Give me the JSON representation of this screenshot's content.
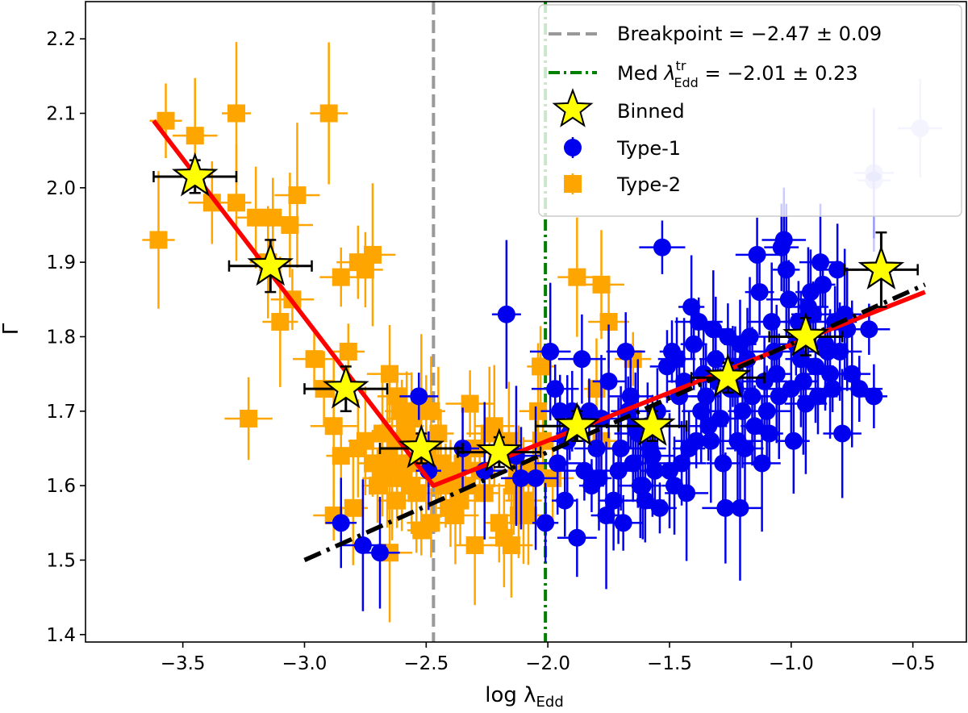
{
  "chart_data": {
    "type": "scatter",
    "title": "",
    "xlabel": "log λ",
    "xlabel_sub": "Edd",
    "ylabel": "Γ",
    "xlim": [
      -3.9,
      -0.28
    ],
    "ylim": [
      1.39,
      2.25
    ],
    "xticks": [
      -3.5,
      -3.0,
      -2.5,
      -2.0,
      -1.5,
      -1.0,
      -0.5
    ],
    "xtick_labels": [
      "−3.5",
      "−3.0",
      "−2.5",
      "−2.0",
      "−1.5",
      "−1.0",
      "−0.5"
    ],
    "yticks": [
      1.4,
      1.5,
      1.6,
      1.7,
      1.8,
      1.9,
      2.0,
      2.1,
      2.2
    ],
    "ytick_labels": [
      "1.4",
      "1.5",
      "1.6",
      "1.7",
      "1.8",
      "1.9",
      "2.0",
      "2.1",
      "2.2"
    ],
    "colors": {
      "type1": "#0000ee",
      "type2": "#ffa500",
      "fit_red": "#ff0000",
      "fit_black": "#000000",
      "breakpoint": "#999999",
      "median": "#008000",
      "binned": "#ffff00"
    },
    "vlines": [
      {
        "name": "breakpoint",
        "x": -2.47
      },
      {
        "name": "median",
        "x": -2.01
      }
    ],
    "fits": {
      "red_broken": {
        "x": [
          -3.62,
          -2.47,
          -0.45
        ],
        "y": [
          2.09,
          1.6,
          1.86
        ]
      },
      "black_dashdot": {
        "x": [
          -3.0,
          -0.45
        ],
        "y": [
          1.5,
          1.87
        ]
      }
    },
    "legend": {
      "position": "upper right",
      "entries": [
        {
          "name": "breakpoint",
          "text": "Breakpoint = −2.47 ± 0.09"
        },
        {
          "name": "median",
          "text_pre": "Med ",
          "text_lambda": "λ",
          "text_sup": "tr",
          "text_sub": "Edd",
          "text_post": " = −2.01 ± 0.23"
        },
        {
          "name": "binned",
          "text": "Binned"
        },
        {
          "name": "type1",
          "text": "Type-1"
        },
        {
          "name": "type2",
          "text": "Type-2"
        }
      ]
    },
    "series": [
      {
        "name": "Binned",
        "marker": "star",
        "points": [
          {
            "x": -3.45,
            "y": 2.015,
            "xerr": 0.17,
            "yerr": 0.022
          },
          {
            "x": -3.14,
            "y": 1.895,
            "xerr": 0.17,
            "yerr": 0.035
          },
          {
            "x": -2.83,
            "y": 1.73,
            "xerr": 0.17,
            "yerr": 0.03
          },
          {
            "x": -2.52,
            "y": 1.65,
            "xerr": 0.17,
            "yerr": 0.02
          },
          {
            "x": -2.2,
            "y": 1.645,
            "xerr": 0.17,
            "yerr": 0.02
          },
          {
            "x": -1.88,
            "y": 1.68,
            "xerr": 0.17,
            "yerr": 0.02
          },
          {
            "x": -1.57,
            "y": 1.68,
            "xerr": 0.14,
            "yerr": 0.02
          },
          {
            "x": -1.26,
            "y": 1.745,
            "xerr": 0.15,
            "yerr": 0.02
          },
          {
            "x": -0.94,
            "y": 1.8,
            "xerr": 0.15,
            "yerr": 0.025
          },
          {
            "x": -0.63,
            "y": 1.89,
            "xerr": 0.15,
            "yerr": 0.05
          }
        ]
      },
      {
        "name": "Type-1",
        "marker": "circle",
        "points": [
          [
            -2.53,
            1.72
          ],
          [
            -2.49,
            1.62
          ],
          [
            -2.35,
            1.65
          ],
          [
            -2.26,
            1.62
          ],
          [
            -2.17,
            1.83
          ],
          [
            -2.13,
            1.64
          ],
          [
            -2.11,
            1.61
          ],
          [
            -2.05,
            1.61
          ],
          [
            -2.01,
            1.55
          ],
          [
            -1.99,
            1.78
          ],
          [
            -1.97,
            1.73
          ],
          [
            -1.95,
            1.7
          ],
          [
            -1.92,
            1.66
          ],
          [
            -1.9,
            1.7
          ],
          [
            -1.88,
            1.53
          ],
          [
            -1.86,
            1.77
          ],
          [
            -1.85,
            1.62
          ],
          [
            -1.82,
            1.6
          ],
          [
            -1.8,
            1.65
          ],
          [
            -1.78,
            1.69
          ],
          [
            -1.75,
            1.74
          ],
          [
            -1.73,
            1.58
          ],
          [
            -1.7,
            1.65
          ],
          [
            -1.68,
            1.78
          ],
          [
            -1.66,
            1.72
          ],
          [
            -1.64,
            1.68
          ],
          [
            -1.62,
            1.6
          ],
          [
            -1.6,
            1.58
          ],
          [
            -1.58,
            1.65
          ],
          [
            -1.56,
            1.62
          ],
          [
            -1.55,
            1.7
          ],
          [
            -1.54,
            1.57
          ],
          [
            -1.53,
            1.92
          ],
          [
            -1.51,
            1.76
          ],
          [
            -1.5,
            1.62
          ],
          [
            -1.49,
            1.78
          ],
          [
            -1.48,
            1.6
          ],
          [
            -1.47,
            1.77
          ],
          [
            -1.46,
            1.72
          ],
          [
            -1.44,
            1.74
          ],
          [
            -1.42,
            1.65
          ],
          [
            -1.41,
            1.84
          ],
          [
            -1.4,
            1.79
          ],
          [
            -1.38,
            1.82
          ],
          [
            -1.36,
            1.75
          ],
          [
            -1.35,
            1.72
          ],
          [
            -1.34,
            1.68
          ],
          [
            -1.32,
            1.81
          ],
          [
            -1.31,
            1.77
          ],
          [
            -1.3,
            1.74
          ],
          [
            -1.28,
            1.63
          ],
          [
            -1.27,
            1.57
          ],
          [
            -1.26,
            1.8
          ],
          [
            -1.24,
            1.76
          ],
          [
            -1.23,
            1.73
          ],
          [
            -1.22,
            1.66
          ],
          [
            -1.21,
            1.79
          ],
          [
            -1.2,
            1.7
          ],
          [
            -1.19,
            1.65
          ],
          [
            -1.18,
            1.77
          ],
          [
            -1.17,
            1.8
          ],
          [
            -1.16,
            1.72
          ],
          [
            -1.15,
            1.68
          ],
          [
            -1.14,
            1.91
          ],
          [
            -1.13,
            1.86
          ],
          [
            -1.12,
            1.63
          ],
          [
            -1.11,
            1.74
          ],
          [
            -1.1,
            1.7
          ],
          [
            -1.09,
            1.67
          ],
          [
            -1.08,
            1.82
          ],
          [
            -1.07,
            1.78
          ],
          [
            -1.06,
            1.75
          ],
          [
            -1.05,
            1.72
          ],
          [
            -1.04,
            1.92
          ],
          [
            -1.03,
            1.93
          ],
          [
            -1.02,
            1.89
          ],
          [
            -1.01,
            1.85
          ],
          [
            -1.0,
            1.73
          ],
          [
            -0.99,
            1.66
          ],
          [
            -0.98,
            1.79
          ],
          [
            -0.97,
            1.82
          ],
          [
            -0.96,
            1.77
          ],
          [
            -0.95,
            1.74
          ],
          [
            -0.94,
            1.71
          ],
          [
            -0.93,
            1.84
          ],
          [
            -0.92,
            1.86
          ],
          [
            -0.91,
            1.83
          ],
          [
            -0.9,
            1.76
          ],
          [
            -0.89,
            1.72
          ],
          [
            -0.88,
            1.9
          ],
          [
            -0.87,
            1.87
          ],
          [
            -0.86,
            1.79
          ],
          [
            -0.85,
            1.78
          ],
          [
            -0.84,
            1.75
          ],
          [
            -0.83,
            1.73
          ],
          [
            -0.82,
            1.82
          ],
          [
            -0.81,
            1.89
          ],
          [
            -0.8,
            1.78
          ],
          [
            -0.79,
            1.67
          ],
          [
            -0.78,
            1.83
          ],
          [
            -0.77,
            1.81
          ],
          [
            -0.75,
            1.75
          ],
          [
            -0.72,
            1.73
          ],
          [
            -0.68,
            1.81
          ],
          [
            -0.66,
            1.72
          ],
          [
            -2.85,
            1.55
          ],
          [
            -2.76,
            1.52
          ],
          [
            -2.69,
            1.51
          ],
          [
            -1.96,
            1.63
          ],
          [
            -1.93,
            1.58
          ],
          [
            -1.91,
            1.67
          ],
          [
            -1.83,
            1.7
          ],
          [
            -1.79,
            1.61
          ],
          [
            -1.76,
            1.56
          ],
          [
            -1.71,
            1.62
          ],
          [
            -1.69,
            1.55
          ],
          [
            -1.67,
            1.7
          ],
          [
            -1.65,
            1.63
          ],
          [
            -1.63,
            1.67
          ],
          [
            -1.61,
            1.6
          ],
          [
            -1.59,
            1.68
          ],
          [
            -1.57,
            1.64
          ],
          [
            -1.45,
            1.63
          ],
          [
            -1.43,
            1.59
          ],
          [
            -1.39,
            1.66
          ],
          [
            -1.37,
            1.7
          ],
          [
            -1.33,
            1.66
          ],
          [
            -1.29,
            1.69
          ],
          [
            -1.25,
            1.73
          ],
          [
            -1.21,
            1.57
          ]
        ]
      },
      {
        "name": "Type-1 faint",
        "marker": "circle-faint",
        "points": [
          [
            -0.66,
            2.02
          ],
          [
            -0.66,
            2.01
          ],
          [
            -0.47,
            2.08
          ]
        ]
      },
      {
        "name": "Type-2",
        "marker": "square",
        "points": [
          [
            -3.57,
            2.09
          ],
          [
            -3.45,
            2.07
          ],
          [
            -3.28,
            2.1
          ],
          [
            -3.6,
            1.93
          ],
          [
            -3.38,
            1.98
          ],
          [
            -3.28,
            1.98
          ],
          [
            -3.2,
            1.96
          ],
          [
            -3.13,
            1.96
          ],
          [
            -3.15,
            1.9
          ],
          [
            -3.06,
            1.95
          ],
          [
            -3.03,
            1.99
          ],
          [
            -2.9,
            2.1
          ],
          [
            -2.85,
            1.88
          ],
          [
            -2.82,
            1.78
          ],
          [
            -2.78,
            1.9
          ],
          [
            -2.75,
            1.89
          ],
          [
            -2.72,
            1.91
          ],
          [
            -3.1,
            1.82
          ],
          [
            -3.05,
            1.85
          ],
          [
            -2.96,
            1.77
          ],
          [
            -2.92,
            1.73
          ],
          [
            -3.23,
            1.69
          ],
          [
            -2.65,
            1.75
          ],
          [
            -2.62,
            1.72
          ],
          [
            -2.6,
            1.7
          ],
          [
            -2.58,
            1.68
          ],
          [
            -2.55,
            1.66
          ],
          [
            -2.52,
            1.71
          ],
          [
            -2.5,
            1.64
          ],
          [
            -2.48,
            1.7
          ],
          [
            -2.45,
            1.67
          ],
          [
            -2.42,
            1.6
          ],
          [
            -2.4,
            1.57
          ],
          [
            -2.38,
            1.56
          ],
          [
            -2.35,
            1.63
          ],
          [
            -2.32,
            1.71
          ],
          [
            -2.3,
            1.65
          ],
          [
            -2.28,
            1.62
          ],
          [
            -2.26,
            1.59
          ],
          [
            -2.24,
            1.67
          ],
          [
            -2.22,
            1.68
          ],
          [
            -2.2,
            1.55
          ],
          [
            -2.18,
            1.53
          ],
          [
            -2.16,
            1.66
          ],
          [
            -2.14,
            1.6
          ],
          [
            -2.12,
            1.62
          ],
          [
            -2.1,
            1.58
          ],
          [
            -2.08,
            1.56
          ],
          [
            -2.06,
            1.62
          ],
          [
            -2.04,
            1.7
          ],
          [
            -2.02,
            1.66
          ],
          [
            -1.98,
            1.61
          ],
          [
            -2.85,
            1.64
          ],
          [
            -2.8,
            1.57
          ],
          [
            -2.88,
            1.56
          ],
          [
            -2.75,
            1.66
          ],
          [
            -2.72,
            1.63
          ],
          [
            -2.7,
            1.6
          ],
          [
            -2.68,
            1.67
          ],
          [
            -2.66,
            1.64
          ],
          [
            -2.64,
            1.62
          ],
          [
            -2.62,
            1.58
          ],
          [
            -2.6,
            1.61
          ],
          [
            -2.58,
            1.63
          ],
          [
            -2.56,
            1.6
          ],
          [
            -2.54,
            1.59
          ],
          [
            -2.52,
            1.54
          ],
          [
            -2.48,
            1.55
          ],
          [
            -2.44,
            1.63
          ],
          [
            -2.4,
            1.62
          ],
          [
            -2.36,
            1.58
          ],
          [
            -2.34,
            1.6
          ],
          [
            -2.65,
            1.51
          ],
          [
            -2.3,
            1.52
          ],
          [
            -2.15,
            1.52
          ],
          [
            -2.12,
            1.56
          ],
          [
            -2.03,
            1.76
          ],
          [
            -1.88,
            1.88
          ],
          [
            -1.78,
            1.87
          ],
          [
            -1.75,
            1.82
          ],
          [
            -1.65,
            1.77
          ],
          [
            -1.78,
            1.66
          ],
          [
            -1.8,
            1.73
          ],
          [
            -2.88,
            1.68
          ],
          [
            -2.78,
            1.65
          ],
          [
            -2.68,
            1.61
          ],
          [
            -2.62,
            1.66
          ],
          [
            -2.56,
            1.69
          ],
          [
            -2.5,
            1.65
          ],
          [
            -2.46,
            1.61
          ]
        ]
      }
    ]
  }
}
